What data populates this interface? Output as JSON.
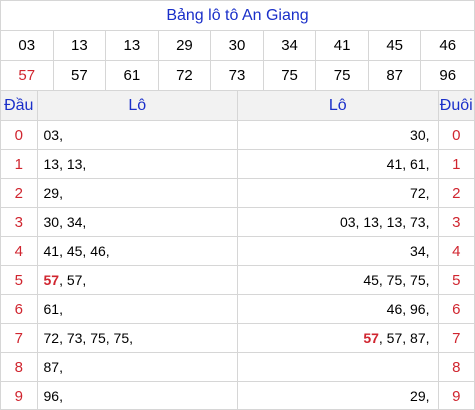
{
  "title": "Bảng lô tô An Giang",
  "prizes": [
    {
      "v": "03"
    },
    {
      "v": "13"
    },
    {
      "v": "13"
    },
    {
      "v": "29"
    },
    {
      "v": "30"
    },
    {
      "v": "34"
    },
    {
      "v": "41"
    },
    {
      "v": "45"
    },
    {
      "v": "46"
    },
    {
      "v": "57",
      "red": true
    },
    {
      "v": "57"
    },
    {
      "v": "61"
    },
    {
      "v": "72"
    },
    {
      "v": "73"
    },
    {
      "v": "75"
    },
    {
      "v": "75"
    },
    {
      "v": "87"
    },
    {
      "v": "96"
    }
  ],
  "headers": {
    "dau": "Đầu",
    "lo_left": "Lô",
    "lo_right": "Lô",
    "duoi": "Đuôi"
  },
  "rows": [
    {
      "dau": "0",
      "left": [
        {
          "t": "03,"
        }
      ],
      "right": [
        {
          "t": "30,"
        }
      ],
      "duoi": "0"
    },
    {
      "dau": "1",
      "left": [
        {
          "t": "13, 13,"
        }
      ],
      "right": [
        {
          "t": "41, 61,"
        }
      ],
      "duoi": "1"
    },
    {
      "dau": "2",
      "left": [
        {
          "t": "29,"
        }
      ],
      "right": [
        {
          "t": "72,"
        }
      ],
      "duoi": "2"
    },
    {
      "dau": "3",
      "left": [
        {
          "t": "30, 34,"
        }
      ],
      "right": [
        {
          "t": "03, 13, 13, 73,"
        }
      ],
      "duoi": "3"
    },
    {
      "dau": "4",
      "left": [
        {
          "t": "41, 45, 46,"
        }
      ],
      "right": [
        {
          "t": "34,"
        }
      ],
      "duoi": "4"
    },
    {
      "dau": "5",
      "left": [
        {
          "t": "57",
          "hl": true
        },
        {
          "t": ", 57,"
        }
      ],
      "right": [
        {
          "t": "45, 75, 75,"
        }
      ],
      "duoi": "5"
    },
    {
      "dau": "6",
      "left": [
        {
          "t": "61,"
        }
      ],
      "right": [
        {
          "t": "46, 96,"
        }
      ],
      "duoi": "6"
    },
    {
      "dau": "7",
      "left": [
        {
          "t": "72, 73, 75, 75,"
        }
      ],
      "right": [
        {
          "t": "57",
          "hl": true
        },
        {
          "t": ", 57, 87,"
        }
      ],
      "duoi": "7"
    },
    {
      "dau": "8",
      "left": [
        {
          "t": "87,"
        }
      ],
      "right": [],
      "duoi": "8"
    },
    {
      "dau": "9",
      "left": [
        {
          "t": "96,"
        }
      ],
      "right": [
        {
          "t": "29,"
        }
      ],
      "duoi": "9"
    }
  ]
}
